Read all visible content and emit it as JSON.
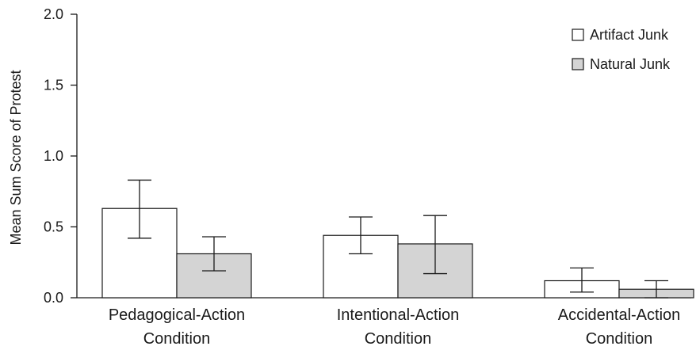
{
  "chart_data": {
    "type": "bar",
    "categories": [
      [
        "Pedagogical-Action",
        "Condition"
      ],
      [
        "Intentional-Action",
        "Condition"
      ],
      [
        "Accidental-Action",
        "Condition"
      ]
    ],
    "series": [
      {
        "name": "Artifact Junk",
        "values": [
          0.63,
          0.44,
          0.12
        ],
        "error_low": [
          0.42,
          0.31,
          0.04
        ],
        "error_high": [
          0.83,
          0.57,
          0.21
        ],
        "color": "#ffffff"
      },
      {
        "name": "Natural Junk",
        "values": [
          0.31,
          0.38,
          0.06
        ],
        "error_low": [
          0.19,
          0.17,
          0.0
        ],
        "error_high": [
          0.43,
          0.58,
          0.12
        ],
        "color": "#d4d4d4"
      }
    ],
    "title": "",
    "xlabel": "",
    "ylabel": "Mean Sum Score of Protest",
    "ylim": [
      0,
      2.0
    ],
    "yticks": [
      "0.0",
      "0.5",
      "1.0",
      "1.5",
      "2.0"
    ],
    "grid": false,
    "legend_position": "top-right"
  }
}
